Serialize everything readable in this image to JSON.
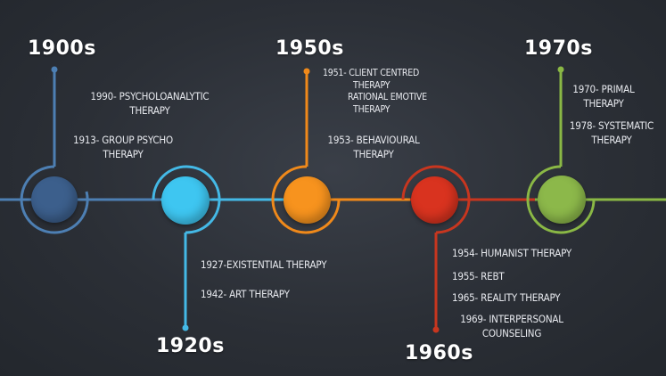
{
  "colors": {
    "c1900": "#3c5f8c",
    "c1920": "#3ec6f1",
    "c1950": "#f7931e",
    "c1960": "#d9331f",
    "c1970": "#8cb84a",
    "lineBlue": "#4d7fb3",
    "lineCyan": "#44b9e6",
    "lineOrange": "#f0891a",
    "lineRed": "#c8361f",
    "lineGreen": "#8ab845"
  },
  "decades": {
    "d1900": "1900s",
    "d1920": "1920s",
    "d1950": "1950s",
    "d1960": "1960s",
    "d1970": "1970s"
  },
  "events": {
    "e1900a_1": "1990- PSYCHOLOANALYTIC",
    "e1900a_2": "THERAPY",
    "e1900b_1": "1913- GROUP PSYCHO",
    "e1900b_2": "THERAPY",
    "e1920a": "1927-EXISTENTIAL THERAPY",
    "e1920b": "1942- ART THERAPY",
    "e1950a_1": "1951- CLIENT CENTRED",
    "e1950a_2": "THERAPY",
    "e1950a_3": "RATIONAL EMOTIVE",
    "e1950a_4": "THERAPY",
    "e1950b_1": "1953- BEHAVIOURAL",
    "e1950b_2": "THERAPY",
    "e1960a": "1954- HUMANIST THERAPY",
    "e1960b": "1955- REBT",
    "e1960c": "1965- REALITY THERAPY",
    "e1960d_1": "1969- INTERPERSONAL",
    "e1960d_2": "COUNSELING",
    "e1970a_1": "1970- PRIMAL",
    "e1970a_2": "THERAPY",
    "e1970b_1": "1978- SYSTEMATIC",
    "e1970b_2": "THERAPY"
  }
}
